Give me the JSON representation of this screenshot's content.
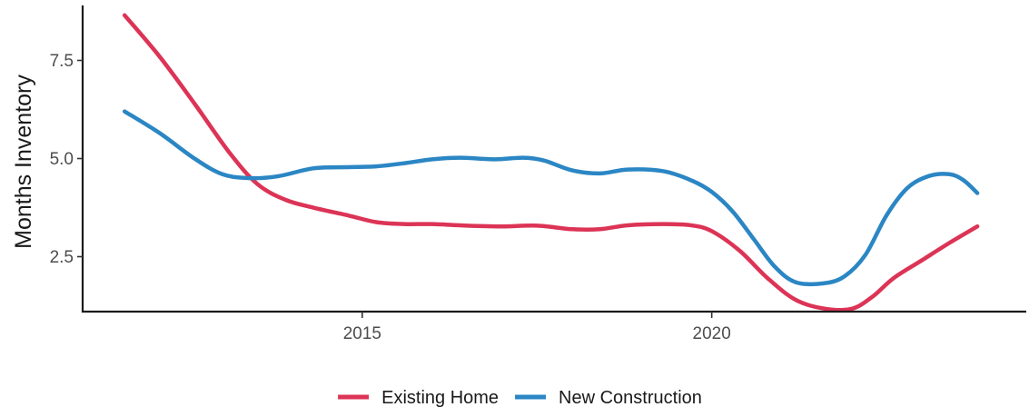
{
  "chart_data": {
    "type": "line",
    "title": "",
    "xlabel": "",
    "ylabel": "Months Inventory",
    "xlim": [
      2011,
      2024.5
    ],
    "ylim": [
      1.1,
      8.9
    ],
    "x_ticks": [
      2015,
      2020
    ],
    "x_tick_labels": [
      "2015",
      "2020"
    ],
    "y_ticks": [
      2.5,
      5.0,
      7.5
    ],
    "y_tick_labels": [
      "2.5",
      "5.0",
      "7.5"
    ],
    "grid": false,
    "legend_position": "bottom",
    "series": [
      {
        "name": "Existing Home",
        "color": "#dc3456",
        "x": [
          2011.6,
          2012.1,
          2012.6,
          2013.1,
          2013.5,
          2013.9,
          2014.3,
          2014.8,
          2015.2,
          2015.6,
          2016.0,
          2016.5,
          2017.0,
          2017.5,
          2018.0,
          2018.4,
          2018.8,
          2019.3,
          2019.7,
          2020.0,
          2020.4,
          2020.8,
          2021.2,
          2021.6,
          2022.0,
          2022.3,
          2022.6,
          2023.0,
          2023.4,
          2023.8
        ],
        "y": [
          8.65,
          7.6,
          6.4,
          5.15,
          4.35,
          3.95,
          3.75,
          3.55,
          3.38,
          3.33,
          3.33,
          3.29,
          3.27,
          3.29,
          3.2,
          3.2,
          3.3,
          3.33,
          3.3,
          3.15,
          2.65,
          1.95,
          1.4,
          1.18,
          1.17,
          1.48,
          1.95,
          2.4,
          2.85,
          3.27
        ]
      },
      {
        "name": "New Construction",
        "color": "#2b86c4",
        "x": [
          2011.6,
          2012.1,
          2012.6,
          2013.0,
          2013.4,
          2013.8,
          2014.3,
          2014.8,
          2015.2,
          2015.6,
          2016.0,
          2016.4,
          2016.9,
          2017.3,
          2017.6,
          2018.0,
          2018.4,
          2018.8,
          2019.3,
          2019.7,
          2020.0,
          2020.3,
          2020.6,
          2020.9,
          2021.2,
          2021.6,
          2021.9,
          2022.2,
          2022.5,
          2022.8,
          2023.1,
          2023.4,
          2023.6,
          2023.8
        ],
        "y": [
          6.2,
          5.65,
          5.0,
          4.6,
          4.5,
          4.55,
          4.75,
          4.78,
          4.8,
          4.88,
          4.98,
          5.02,
          4.98,
          5.02,
          4.95,
          4.7,
          4.62,
          4.72,
          4.68,
          4.45,
          4.15,
          3.65,
          2.95,
          2.25,
          1.85,
          1.82,
          2.0,
          2.55,
          3.55,
          4.25,
          4.55,
          4.6,
          4.45,
          4.12
        ]
      }
    ]
  }
}
